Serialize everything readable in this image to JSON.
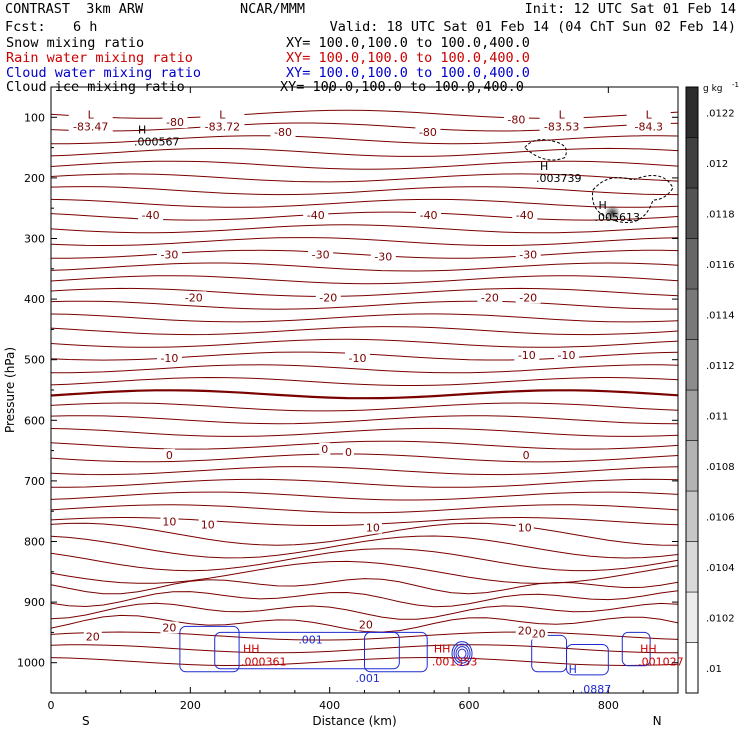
{
  "header": {
    "model": "CONTRAST  3km ARW",
    "center": "NCAR/MMM",
    "init": "Init: 12 UTC Sat 01 Feb 14",
    "fcst_label": "Fcst:",
    "fcst_value": "6 h",
    "valid": "Valid: 18 UTC Sat 01 Feb 14 (04 ChT Sun 02 Feb 14)",
    "fields": [
      {
        "name": "Snow mixing ratio",
        "xy": "XY= 100.0,100.0 to 100.0,400.0",
        "color": "#000000"
      },
      {
        "name": "Rain water mixing ratio",
        "xy": "XY= 100.0,100.0 to 100.0,400.0",
        "color": "#cc0000"
      },
      {
        "name": "Cloud water mixing ratio",
        "xy": "XY= 100.0,100.0 to 100.0,400.0",
        "color": "#0000cc"
      },
      {
        "name": "Cloud ice mixing ratio",
        "xy": "XY= 100.0,100.0 to 100.0,400.0",
        "color": "#000000"
      }
    ]
  },
  "chart_data": {
    "type": "heatmap",
    "xlabel": "Distance (km)",
    "ylabel": "Pressure (hPa)",
    "xlim": [
      0,
      900
    ],
    "ylim": [
      1050,
      50
    ],
    "x_ticks": [
      0,
      200,
      400,
      600,
      800
    ],
    "y_ticks": [
      100,
      200,
      300,
      400,
      500,
      600,
      700,
      800,
      900,
      1000
    ],
    "x_end_labels": {
      "left": "S",
      "right": "N"
    },
    "colorbar": {
      "unit": "g kg",
      "unit_exp": "-1",
      "ticks": [
        ".01",
        ".0102",
        ".0104",
        ".0106",
        ".0108",
        ".011",
        ".0112",
        ".0114",
        ".0116",
        ".0118",
        ".012",
        ".0122"
      ]
    },
    "temperature_contours": {
      "color": "#7a0000",
      "labels": [
        {
          "text": "-80",
          "x": 178,
          "p": 108
        },
        {
          "text": "-80",
          "x": 333,
          "p": 124
        },
        {
          "text": "-80",
          "x": 541,
          "p": 124
        },
        {
          "text": "-80",
          "x": 668,
          "p": 104
        },
        {
          "text": "-40",
          "x": 143,
          "p": 261
        },
        {
          "text": "-40",
          "x": 380,
          "p": 261
        },
        {
          "text": "-40",
          "x": 542,
          "p": 261
        },
        {
          "text": "-40",
          "x": 680,
          "p": 261
        },
        {
          "text": "-30",
          "x": 170,
          "p": 326
        },
        {
          "text": "-30",
          "x": 387,
          "p": 326
        },
        {
          "text": "-30",
          "x": 477,
          "p": 330
        },
        {
          "text": "-30",
          "x": 685,
          "p": 326
        },
        {
          "text": "-20",
          "x": 205,
          "p": 397
        },
        {
          "text": "-20",
          "x": 398,
          "p": 397
        },
        {
          "text": "-20",
          "x": 630,
          "p": 397
        },
        {
          "text": "-20",
          "x": 685,
          "p": 397
        },
        {
          "text": "-10",
          "x": 170,
          "p": 497
        },
        {
          "text": "-10",
          "x": 440,
          "p": 497
        },
        {
          "text": "-10",
          "x": 683,
          "p": 492
        },
        {
          "text": "-10",
          "x": 740,
          "p": 492
        },
        {
          "text": "0",
          "x": 170,
          "p": 657
        },
        {
          "text": "0",
          "x": 393,
          "p": 647
        },
        {
          "text": "0",
          "x": 427,
          "p": 652
        },
        {
          "text": "0",
          "x": 682,
          "p": 657
        },
        {
          "text": "10",
          "x": 170,
          "p": 767
        },
        {
          "text": "10",
          "x": 225,
          "p": 772
        },
        {
          "text": "10",
          "x": 462,
          "p": 777
        },
        {
          "text": "10",
          "x": 680,
          "p": 777
        },
        {
          "text": "20",
          "x": 60,
          "p": 957
        },
        {
          "text": "20",
          "x": 170,
          "p": 942
        },
        {
          "text": "20",
          "x": 452,
          "p": 937
        },
        {
          "text": "20",
          "x": 700,
          "p": 952
        },
        {
          "text": "20",
          "x": 680,
          "p": 947
        }
      ],
      "extrema": [
        {
          "type": "L",
          "value": "-83.47",
          "x": 57,
          "p": 95
        },
        {
          "type": "L",
          "value": "-83.72",
          "x": 246,
          "p": 95
        },
        {
          "type": "L",
          "value": "-83.53",
          "x": 733,
          "p": 95
        },
        {
          "type": "L",
          "value": "-84.3",
          "x": 858,
          "p": 95
        }
      ]
    },
    "ice_maxima": [
      {
        "type": "H",
        "value": ".000567",
        "x": 145,
        "p": 120
      },
      {
        "type": "H",
        "value": ".003739",
        "x": 722,
        "p": 180
      },
      {
        "type": "H",
        "value": ".005613",
        "x": 806,
        "p": 245
      }
    ],
    "cloud_water_labels": [
      {
        "text": ".001",
        "x": 355,
        "p": 962
      },
      {
        "text": ".001",
        "x": 437,
        "p": 1025
      },
      {
        "text": "H",
        "x": 743,
        "p": 1010
      },
      {
        "text": ".0887",
        "x": 759,
        "p": 1043
      }
    ],
    "rain_maxima": [
      {
        "text": "HH",
        "x": 290,
        "p": 990,
        "value": ".000361"
      },
      {
        "text": "HH",
        "x": 564,
        "p": 990,
        "value": ".001353"
      },
      {
        "text": "HH",
        "x": 860,
        "p": 990,
        "value": ".001027"
      }
    ]
  }
}
